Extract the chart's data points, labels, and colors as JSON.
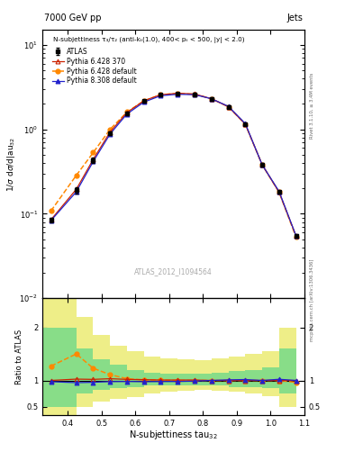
{
  "title_left": "7000 GeV pp",
  "title_right": "Jets",
  "annotation": "N-subjettiness τ₃/τ₂ (anti-kₜ(1.0), 400< pₜ < 500, |y| < 2.0)",
  "watermark": "ATLAS_2012_I1094564",
  "rivet_label": "Rivet 3.1.10, ≥ 3.4M events",
  "mcplots_label": "mcplots.cern.ch [arXiv:1306.3436]",
  "ylabel_main": "1/σ dσ/d|au₃₂",
  "ylabel_ratio": "Ratio to ATLAS",
  "xlabel": "N-subjettiness tau$_{32}$",
  "x": [
    0.35,
    0.425,
    0.475,
    0.525,
    0.575,
    0.625,
    0.675,
    0.725,
    0.775,
    0.825,
    0.875,
    0.925,
    0.975,
    1.025,
    1.075
  ],
  "atlas_y": [
    0.085,
    0.19,
    0.43,
    0.9,
    1.55,
    2.15,
    2.55,
    2.65,
    2.6,
    2.3,
    1.85,
    1.15,
    0.38,
    0.18,
    0.055
  ],
  "atlas_yerr": [
    0.005,
    0.015,
    0.03,
    0.05,
    0.07,
    0.08,
    0.09,
    0.09,
    0.08,
    0.07,
    0.06,
    0.04,
    0.015,
    0.008,
    0.003
  ],
  "py6_370_y": [
    0.085,
    0.195,
    0.44,
    0.93,
    1.58,
    2.18,
    2.57,
    2.67,
    2.62,
    2.3,
    1.85,
    1.15,
    0.38,
    0.18,
    0.055
  ],
  "py6_def_y": [
    0.108,
    0.285,
    0.53,
    1.0,
    1.6,
    2.17,
    2.57,
    2.65,
    2.6,
    2.3,
    1.85,
    1.15,
    0.38,
    0.18,
    0.053
  ],
  "py8_def_y": [
    0.083,
    0.182,
    0.415,
    0.88,
    1.52,
    2.1,
    2.5,
    2.6,
    2.57,
    2.3,
    1.87,
    1.17,
    0.38,
    0.184,
    0.055
  ],
  "ratio_py6_370": [
    1.0,
    1.025,
    1.02,
    1.033,
    1.02,
    1.015,
    1.008,
    1.008,
    1.008,
    1.0,
    1.0,
    1.0,
    1.0,
    1.0,
    1.0
  ],
  "ratio_py6_def": [
    1.27,
    1.5,
    1.23,
    1.11,
    1.032,
    1.01,
    1.008,
    1.0,
    1.0,
    1.0,
    1.0,
    1.0,
    1.0,
    1.0,
    0.964
  ],
  "ratio_py8_def": [
    0.977,
    0.958,
    0.965,
    0.978,
    0.981,
    0.977,
    0.98,
    0.981,
    0.988,
    1.0,
    1.011,
    1.017,
    1.0,
    1.022,
    1.0
  ],
  "x_edges": [
    0.325,
    0.375,
    0.425,
    0.475,
    0.525,
    0.575,
    0.625,
    0.675,
    0.725,
    0.775,
    0.825,
    0.875,
    0.925,
    0.975,
    1.025,
    1.075
  ],
  "yellow_lo": [
    0.35,
    0.35,
    0.5,
    0.6,
    0.65,
    0.68,
    0.75,
    0.78,
    0.8,
    0.82,
    0.8,
    0.78,
    0.75,
    0.7,
    0.5
  ],
  "yellow_hi": [
    2.65,
    2.65,
    2.2,
    1.85,
    1.65,
    1.55,
    1.45,
    1.42,
    1.4,
    1.38,
    1.42,
    1.45,
    1.5,
    1.55,
    2.0
  ],
  "green_lo": [
    0.5,
    0.5,
    0.75,
    0.82,
    0.85,
    0.88,
    0.9,
    0.9,
    0.9,
    0.9,
    0.9,
    0.88,
    0.88,
    0.85,
    0.75
  ],
  "green_hi": [
    2.0,
    2.0,
    1.6,
    1.4,
    1.3,
    1.2,
    1.15,
    1.12,
    1.12,
    1.12,
    1.15,
    1.18,
    1.2,
    1.25,
    1.6
  ],
  "color_atlas": "black",
  "color_py6_370": "#cc2200",
  "color_py6_def": "#ff8800",
  "color_py8_def": "#2222cc",
  "color_green": "#88dd88",
  "color_yellow": "#eeee88",
  "ylim_main": [
    0.01,
    15
  ],
  "ylim_ratio": [
    0.35,
    2.55
  ],
  "xlim": [
    0.325,
    1.1
  ]
}
